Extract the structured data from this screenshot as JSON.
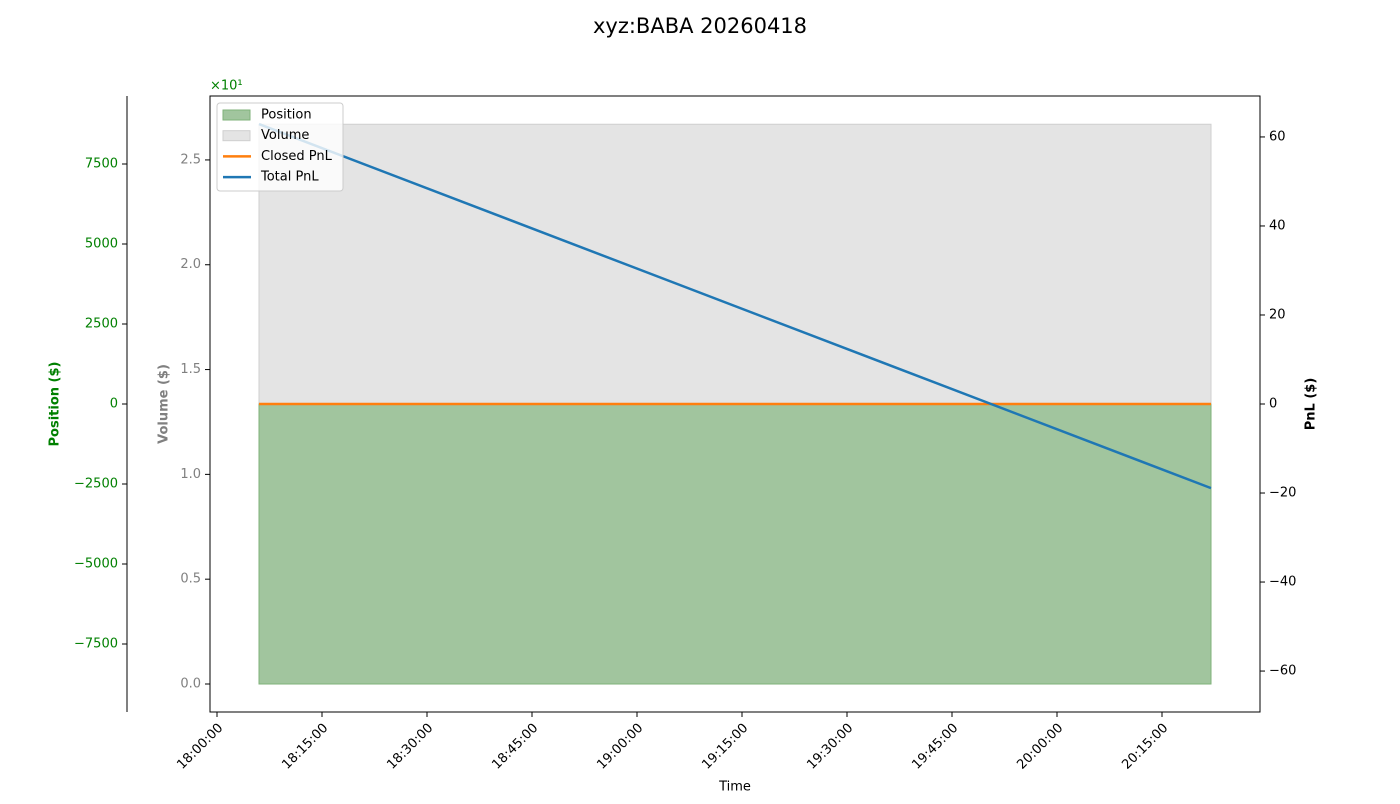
{
  "chart_data": {
    "type": "line",
    "title": "xyz:BABA 20260418",
    "x_label": "Time",
    "x": [
      "18:06:00",
      "20:22:00"
    ],
    "xlim": [
      "17:59:00",
      "20:29:00"
    ],
    "xticks": [
      "18:00:00",
      "18:15:00",
      "18:30:00",
      "18:45:00",
      "19:00:00",
      "19:15:00",
      "19:30:00",
      "19:45:00",
      "20:00:00",
      "20:15:00"
    ],
    "axes": {
      "position": {
        "label": "Position ($)",
        "color": "#008000",
        "ylim": [
          -9625,
          9625
        ],
        "yticks": [
          {
            "value": -7500,
            "label": "−7500"
          },
          {
            "value": -5000,
            "label": "−5000"
          },
          {
            "value": -2500,
            "label": "−2500"
          },
          0,
          2500,
          5000,
          7500
        ]
      },
      "volume": {
        "label": "Volume ($)",
        "color": "#808080",
        "offset_label": "×10¹",
        "offset_color": "#008000",
        "ylim": [
          -0.1336,
          2.805
        ],
        "yticks": [
          {
            "value": 0,
            "label": "0.0"
          },
          0.5,
          {
            "value": 1,
            "label": "1.0"
          },
          1.5,
          {
            "value": 2,
            "label": "2.0"
          },
          2.5
        ]
      },
      "pnl": {
        "label": "PnL ($)",
        "color": "#000000",
        "ylim": [
          -69.2,
          69.2
        ],
        "yticks": [
          {
            "value": -60,
            "label": "−60"
          },
          {
            "value": -40,
            "label": "−40"
          },
          {
            "value": -20,
            "label": "−20"
          },
          0,
          20,
          40,
          60
        ]
      }
    },
    "legend": "upper left",
    "series": [
      {
        "name": "Position",
        "kind": "area",
        "axis": "position",
        "color": "#a1c59e",
        "values": [
          -8750,
          -8750
        ]
      },
      {
        "name": "Volume",
        "kind": "area",
        "axis": "volume",
        "color": "#e4e4e4",
        "values": [
          2.67,
          2.67
        ]
      },
      {
        "name": "Closed PnL",
        "kind": "line",
        "axis": "pnl",
        "color": "#ff7f0e",
        "values": [
          0,
          0
        ]
      },
      {
        "name": "Total PnL",
        "kind": "line",
        "axis": "pnl",
        "color": "#1f77b4",
        "values": [
          62.9,
          -18.9
        ]
      }
    ]
  }
}
